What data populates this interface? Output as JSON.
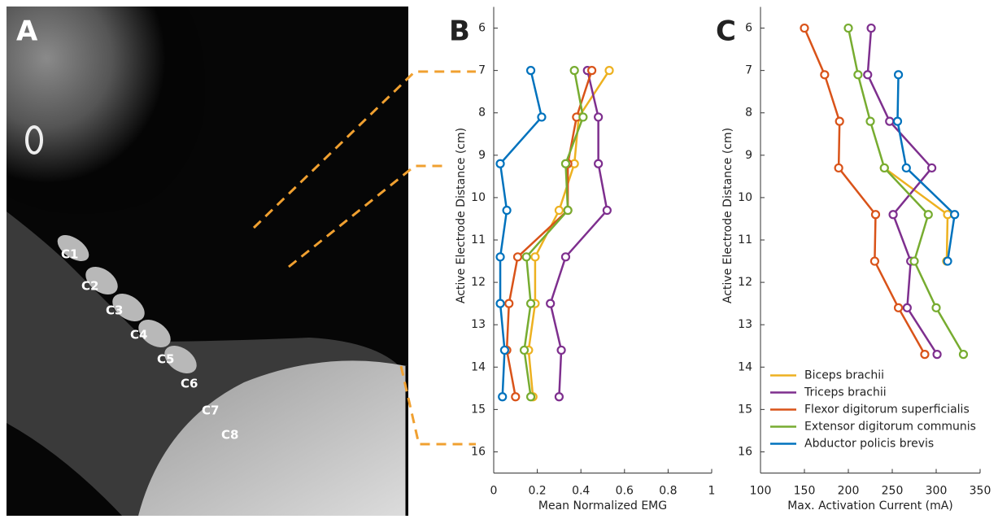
{
  "xray": {
    "label": "A",
    "vertebrae_labels": [
      "C1",
      "C2",
      "C3",
      "C4",
      "C5",
      "C6",
      "C7",
      "C8"
    ]
  },
  "chart_data": [
    {
      "type": "line",
      "label": "B",
      "xlabel": "Mean Normalized EMG",
      "ylabel": "Active Electrode Distance (cm)",
      "y": [
        7,
        8.1,
        9.2,
        10.3,
        11.4,
        12.5,
        13.6,
        14.7
      ],
      "xlim": [
        0,
        1
      ],
      "xticks": [
        0,
        0.2,
        0.4,
        0.6,
        0.8,
        1
      ],
      "ylim": [
        5.5,
        16.5
      ],
      "yticks": [
        6,
        7,
        8,
        9,
        10,
        11,
        12,
        13,
        14,
        15,
        16
      ],
      "y_inverted": true,
      "series": [
        {
          "color": "#edb120",
          "values": [
            0.53,
            0.39,
            0.37,
            0.3,
            0.19,
            0.19,
            0.16,
            0.18
          ]
        },
        {
          "color": "#7e2f8e",
          "values": [
            0.43,
            0.48,
            0.48,
            0.52,
            0.33,
            0.26,
            0.31,
            0.3
          ]
        },
        {
          "color": "#d95319",
          "values": [
            0.45,
            0.38,
            0.34,
            0.34,
            0.11,
            0.07,
            0.06,
            0.1
          ]
        },
        {
          "color": "#77ac30",
          "values": [
            0.37,
            0.41,
            0.33,
            0.34,
            0.15,
            0.17,
            0.14,
            0.17
          ]
        },
        {
          "color": "#0072bd",
          "values": [
            0.17,
            0.22,
            0.03,
            0.06,
            0.03,
            0.03,
            0.05,
            0.04
          ]
        }
      ]
    },
    {
      "type": "line",
      "label": "C",
      "xlabel": "Max. Activation Current (mA)",
      "ylabel": "Active Electrode Distance (cm)",
      "y": [
        6,
        7.1,
        8.2,
        9.3,
        10.4,
        11.5,
        12.6,
        13.7
      ],
      "xlim": [
        100,
        350
      ],
      "xticks": [
        100,
        150,
        200,
        250,
        300,
        350
      ],
      "ylim": [
        5.5,
        16.5
      ],
      "yticks": [
        6,
        7,
        8,
        9,
        10,
        11,
        12,
        13,
        14,
        15,
        16
      ],
      "y_inverted": true,
      "legend": "lower left",
      "series": [
        {
          "name": "Biceps brachii",
          "color": "#edb120",
          "values": [
            null,
            null,
            null,
            241,
            313,
            312,
            null,
            null
          ]
        },
        {
          "name": "Triceps brachii",
          "color": "#7e2f8e",
          "values": [
            226,
            222,
            247,
            295,
            251,
            271,
            267,
            301
          ]
        },
        {
          "name": "Flexor digitorum superficialis",
          "color": "#d95319",
          "values": [
            150,
            173,
            190,
            189,
            231,
            230,
            257,
            287
          ]
        },
        {
          "name": "Extensor digitorum communis",
          "color": "#77ac30",
          "values": [
            200,
            211,
            225,
            241,
            291,
            275,
            300,
            331
          ]
        },
        {
          "name": "Abductor policis brevis",
          "color": "#0072bd",
          "values": [
            null,
            257,
            256,
            266,
            321,
            313,
            null,
            null
          ]
        }
      ]
    }
  ]
}
